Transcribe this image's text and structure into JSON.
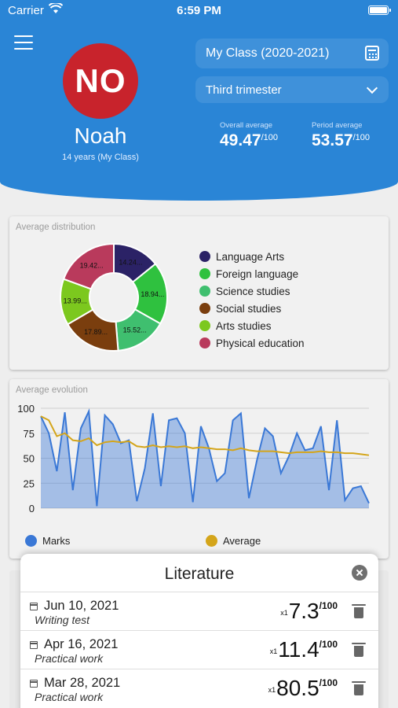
{
  "status_bar": {
    "carrier": "Carrier",
    "time": "6:59 PM"
  },
  "student": {
    "initials": "NO",
    "name": "Noah",
    "subtitle": "14 years (My Class)",
    "avatar_color": "#c8232c"
  },
  "class_selector": {
    "value": "My Class (2020-2021)"
  },
  "period_selector": {
    "value": "Third trimester"
  },
  "averages": {
    "overall": {
      "label": "Overall average",
      "value": "49.47",
      "suffix": "/100"
    },
    "period": {
      "label": "Period average",
      "value": "53.57",
      "suffix": "/100"
    }
  },
  "distribution_card": {
    "title": "Average distribution"
  },
  "evolution_card": {
    "title": "Average evolution"
  },
  "chart_data": [
    {
      "type": "pie",
      "title": "Average distribution",
      "categories": [
        "Language Arts",
        "Foreign language",
        "Science studies",
        "Social studies",
        "Arts studies",
        "Physical education"
      ],
      "values": [
        14.24,
        18.94,
        15.52,
        17.89,
        13.99,
        19.42
      ],
      "labels": [
        "14.24...",
        "18.94...",
        "15.52...",
        "17.89...",
        "13.99...",
        "19.42..."
      ],
      "colors": [
        "#2b2266",
        "#2fc13f",
        "#3fbf6f",
        "#7a3e0e",
        "#7cc81e",
        "#b93a5c"
      ],
      "legend": "right"
    },
    {
      "type": "line",
      "title": "Average evolution",
      "ylim": [
        0,
        100
      ],
      "yticks": [
        "100",
        "75",
        "50",
        "25",
        "0"
      ],
      "grid": true,
      "legend": "bottom",
      "series": [
        {
          "name": "Marks",
          "color": "#3a78d6",
          "values": [
            92,
            75,
            37,
            96,
            18,
            80,
            97,
            2,
            93,
            84,
            65,
            68,
            7,
            40,
            95,
            22,
            88,
            90,
            75,
            6,
            82,
            60,
            27,
            35,
            88,
            95,
            10,
            48,
            80,
            72,
            35,
            52,
            75,
            58,
            60,
            82,
            18,
            88,
            8,
            20,
            22,
            5
          ]
        },
        {
          "name": "Average",
          "color": "#d4a51a",
          "values": [
            92,
            88,
            72,
            75,
            68,
            67,
            70,
            63,
            66,
            67,
            66,
            67,
            62,
            61,
            63,
            61,
            62,
            61,
            62,
            60,
            61,
            60,
            59,
            59,
            58,
            60,
            58,
            57,
            57,
            57,
            56,
            55,
            56,
            56,
            56,
            57,
            56,
            56,
            55,
            55,
            54,
            53
          ]
        }
      ]
    }
  ],
  "sheet": {
    "title": "Literature",
    "marks": [
      {
        "date": "Jun 10, 2021",
        "type": "Writing test",
        "coef": "x1",
        "value": "7.3",
        "suffix": "/100"
      },
      {
        "date": "Apr 16, 2021",
        "type": "Practical work",
        "coef": "x1",
        "value": "11.4",
        "suffix": "/100"
      },
      {
        "date": "Mar 28, 2021",
        "type": "Practical work",
        "coef": "x1",
        "value": "80.5",
        "suffix": "/100"
      }
    ]
  },
  "icons": [
    "menu-icon",
    "calendar-icon",
    "chevron-down-icon",
    "close-icon",
    "trash-icon"
  ]
}
